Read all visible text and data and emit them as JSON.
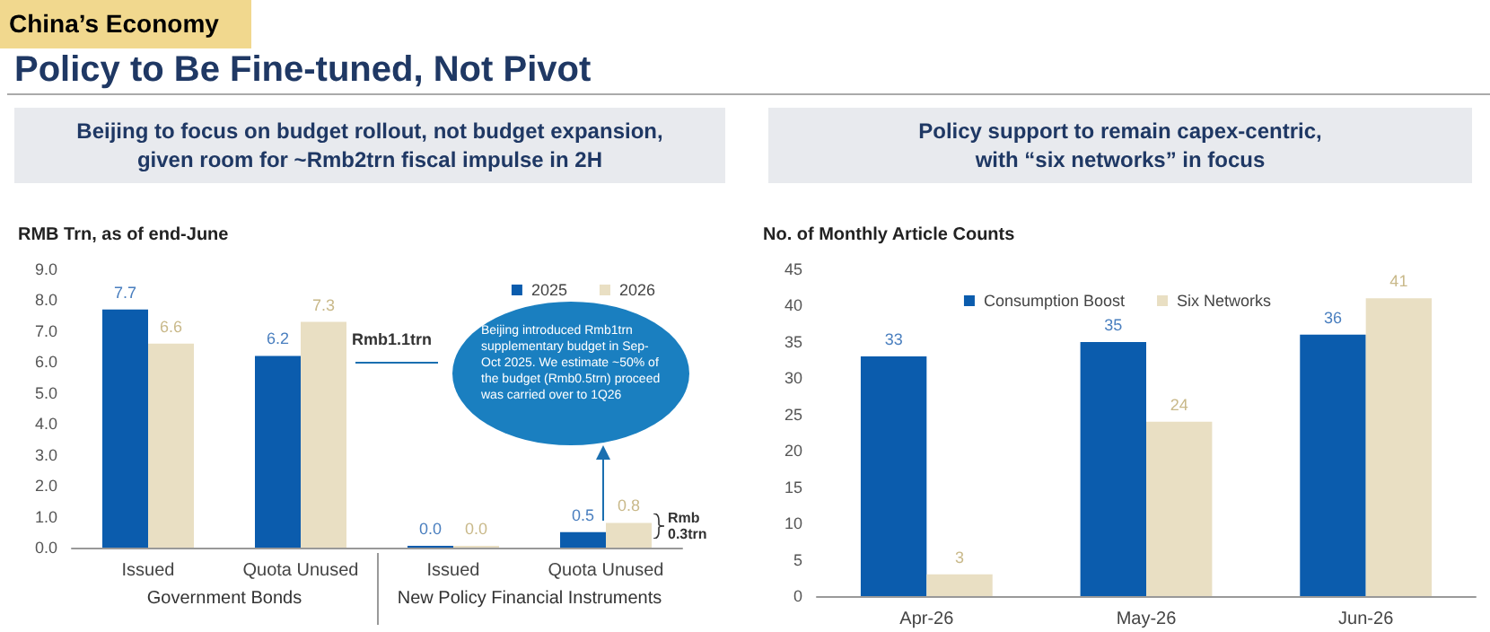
{
  "chart_data": [
    {
      "type": "bar",
      "title": "Policy to Be Fine-tuned, Not Pivot",
      "subtitle": "Beijing to focus on budget rollout, not budget expansion, given room for ~Rmb2trn fiscal impulse in 2H",
      "ylabel": "RMB Trn, as of end-June",
      "annotations": [
        "China’s Economy",
        "Government Bonds",
        "New Policy Financial Instruments",
        "Rmb1.1trn",
        "Beijing introduced Rmb1trn supplementary budget in Sep-Oct 2025. We estimate ~50% of the budget (Rmb0.5trn) proceed was carried over to 1Q26",
        "Rmb 0.3trn"
      ],
      "categories": [
        "Issued",
        "Quota Unused",
        "Issued",
        "Quota Unused"
      ],
      "series": [
        {
          "name": "2025",
          "color": "#0b5cad",
          "values": [
            7.7,
            6.2,
            0.0,
            0.5
          ],
          "value_labels": [
            "7.7",
            "6.2",
            "0.0",
            "0.5"
          ]
        },
        {
          "name": "2026",
          "color": "#e9dfc3",
          "values": [
            6.6,
            7.3,
            0.0,
            0.8
          ],
          "value_labels": [
            "6.6",
            "7.3",
            "0.0",
            "0.8"
          ]
        }
      ],
      "ylim": [
        0,
        9
      ],
      "yticks": [
        {
          "value": 0,
          "label": "0.0"
        },
        {
          "value": 1,
          "label": "1.0"
        },
        {
          "value": 2,
          "label": "2.0"
        },
        {
          "value": 3,
          "label": "3.0"
        },
        {
          "value": 4,
          "label": "4.0"
        },
        {
          "value": 5,
          "label": "5.0"
        },
        {
          "value": 6,
          "label": "6.0"
        },
        {
          "value": 7,
          "label": "7.0"
        },
        {
          "value": 8,
          "label": "8.0"
        },
        {
          "value": 9,
          "label": "9.0"
        }
      ],
      "grid": false,
      "legend": "top right"
    },
    {
      "type": "bar",
      "title": "Policy support to remain capex-centric, with “six networks” in focus",
      "ylabel": "No. of Monthly Article Counts",
      "categories": [
        "Apr-26",
        "May-26",
        "Jun-26"
      ],
      "series": [
        {
          "name": "Consumption Boost",
          "color": "#0b5cad",
          "values": [
            33,
            35,
            36
          ]
        },
        {
          "name": "Six Networks",
          "color": "#e9dfc3",
          "values": [
            3,
            24,
            41
          ]
        }
      ],
      "ylim": [
        0,
        45
      ],
      "yticks": [
        0,
        5,
        10,
        15,
        20,
        25,
        30,
        35,
        40,
        45
      ],
      "grid": false,
      "legend": "top",
      "data_labels": true
    }
  ]
}
